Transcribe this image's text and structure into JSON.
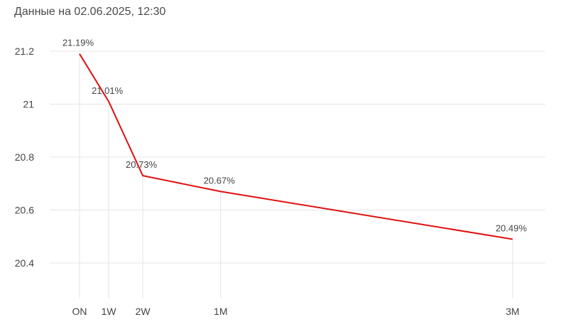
{
  "header": {
    "caption": "Данные на 02.06.2025, 12:30"
  },
  "colors": {
    "series_line": "#e01010",
    "grid": "#e4e4e4",
    "text": "#444444"
  },
  "chart_data": {
    "type": "line",
    "title": "",
    "xlabel": "",
    "ylabel": "",
    "x_scale": "time-to-maturity",
    "categories": [
      "ON",
      "1W",
      "2W",
      "1M",
      "3M"
    ],
    "x_days": [
      1,
      7,
      14,
      30,
      90
    ],
    "values": [
      21.19,
      21.01,
      20.73,
      20.67,
      20.49
    ],
    "data_labels": [
      "21.19%",
      "21.01%",
      "20.73%",
      "20.67%",
      "20.49%"
    ],
    "ylim": [
      20.28,
      21.26
    ],
    "yticks": [
      20.4,
      20.6,
      20.8,
      21,
      21.2
    ],
    "ytick_labels": [
      "20.4",
      "20.6",
      "20.8",
      "21",
      "21.2"
    ],
    "grid": {
      "horizontal": true,
      "vertical": true
    },
    "legend": "none"
  }
}
